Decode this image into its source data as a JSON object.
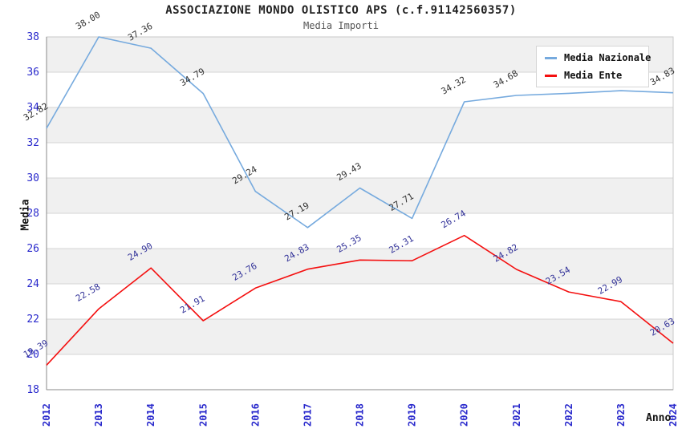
{
  "header": {
    "title": "ASSOCIAZIONE MONDO OLISTICO APS (c.f.91142560357)",
    "subtitle": "Media Importi"
  },
  "chart_data": {
    "type": "line",
    "title": "ASSOCIAZIONE MONDO OLISTICO APS (c.f.91142560357)",
    "subtitle": "Media Importi",
    "xlabel": "Anno",
    "ylabel": "Media",
    "x": [
      2012,
      2013,
      2014,
      2015,
      2016,
      2017,
      2018,
      2019,
      2020,
      2021,
      2022,
      2023,
      2024
    ],
    "series": [
      {
        "name": "Media Nazionale",
        "color": "#76aade",
        "label_color": "#333333",
        "values": [
          32.82,
          38.0,
          37.36,
          34.79,
          29.24,
          27.19,
          29.43,
          27.71,
          34.32,
          34.68,
          34.8,
          34.95,
          34.83
        ]
      },
      {
        "name": "Media Ente",
        "color": "#f40f0f",
        "label_color": "#333399",
        "values": [
          19.39,
          22.58,
          24.9,
          21.91,
          23.76,
          24.83,
          25.35,
          25.31,
          26.74,
          24.82,
          23.54,
          22.99,
          20.63
        ]
      }
    ],
    "ylim": [
      18,
      38
    ],
    "ytick_step": 2,
    "grid": true,
    "band_color": "#f0f0f0",
    "grid_color": "#d4d4d4",
    "plot_border_color": "#c9c9c9",
    "axis_line_color": "#8a8a8a",
    "tick_label_color": "#2929cc",
    "legend_position": "top-right"
  }
}
